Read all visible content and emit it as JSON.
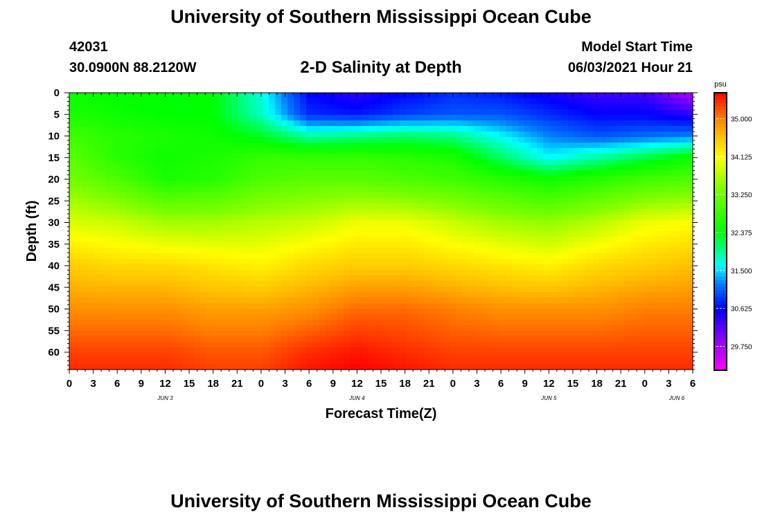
{
  "header": {
    "title": "University of Southern Mississippi Ocean Cube",
    "station_id": "42031",
    "station_position": "30.0900N  88.2120W",
    "plot_title": "2-D Salinity at Depth",
    "model_start_label": "Model Start Time",
    "model_start_value": "06/03/2021 Hour 21"
  },
  "footer": {
    "title": "University of Southern Mississippi Ocean Cube"
  },
  "chart_data": {
    "type": "heatmap",
    "title": "2-D Salinity at Depth",
    "xlabel": "Forecast Time(Z)",
    "ylabel": "Depth (ft)",
    "x_range_hours": [
      0,
      78
    ],
    "y_range": [
      0,
      64
    ],
    "y_inverted": true,
    "x_ticks": [
      {
        "h": 0,
        "label": "0"
      },
      {
        "h": 3,
        "label": "3"
      },
      {
        "h": 6,
        "label": "6"
      },
      {
        "h": 9,
        "label": "9"
      },
      {
        "h": 12,
        "label": "12"
      },
      {
        "h": 15,
        "label": "15"
      },
      {
        "h": 18,
        "label": "18"
      },
      {
        "h": 21,
        "label": "21"
      },
      {
        "h": 24,
        "label": "0"
      },
      {
        "h": 27,
        "label": "3"
      },
      {
        "h": 30,
        "label": "6"
      },
      {
        "h": 33,
        "label": "9"
      },
      {
        "h": 36,
        "label": "12"
      },
      {
        "h": 39,
        "label": "15"
      },
      {
        "h": 42,
        "label": "18"
      },
      {
        "h": 45,
        "label": "21"
      },
      {
        "h": 48,
        "label": "0"
      },
      {
        "h": 51,
        "label": "3"
      },
      {
        "h": 54,
        "label": "6"
      },
      {
        "h": 57,
        "label": "9"
      },
      {
        "h": 60,
        "label": "12"
      },
      {
        "h": 63,
        "label": "15"
      },
      {
        "h": 66,
        "label": "18"
      },
      {
        "h": 69,
        "label": "21"
      },
      {
        "h": 72,
        "label": "0"
      },
      {
        "h": 75,
        "label": "3"
      },
      {
        "h": 78,
        "label": "6"
      }
    ],
    "date_labels": [
      {
        "h": 12,
        "label": "JUN 3"
      },
      {
        "h": 36,
        "label": "JUN 4"
      },
      {
        "h": 60,
        "label": "JUN 5"
      },
      {
        "h": 76,
        "label": "JUN 6"
      }
    ],
    "y_ticks": [
      0,
      5,
      10,
      15,
      20,
      25,
      30,
      35,
      40,
      45,
      50,
      55,
      60
    ],
    "colorbar": {
      "unit": "psu",
      "range": [
        29.2,
        35.6
      ],
      "ticks": [
        "35.000",
        "34.125",
        "33.250",
        "32.375",
        "31.500",
        "30.625",
        "29.750"
      ],
      "tick_values": [
        35.0,
        34.125,
        33.25,
        32.375,
        31.5,
        30.625,
        29.75
      ],
      "colors": [
        {
          "v": 29.2,
          "c": "#ff00ff"
        },
        {
          "v": 30.0,
          "c": "#7f00ff"
        },
        {
          "v": 30.6,
          "c": "#0000ff"
        },
        {
          "v": 31.2,
          "c": "#0080ff"
        },
        {
          "v": 31.6,
          "c": "#00ffff"
        },
        {
          "v": 32.4,
          "c": "#00ff00"
        },
        {
          "v": 33.4,
          "c": "#80ff00"
        },
        {
          "v": 34.1,
          "c": "#ffff00"
        },
        {
          "v": 34.6,
          "c": "#ffc000"
        },
        {
          "v": 35.0,
          "c": "#ff8000"
        },
        {
          "v": 35.6,
          "c": "#ff0000"
        }
      ]
    },
    "grid_hours": [
      0,
      6,
      12,
      18,
      24,
      30,
      36,
      42,
      48,
      54,
      60,
      66,
      72,
      78
    ],
    "grid_depths": [
      0,
      5,
      10,
      15,
      20,
      30,
      40,
      50,
      60,
      64
    ],
    "values": [
      [
        32.5,
        32.4,
        32.4,
        32.4,
        31.7,
        30.6,
        30.4,
        30.6,
        30.8,
        30.7,
        30.5,
        30.3,
        30.3,
        29.7
      ],
      [
        32.6,
        32.5,
        32.4,
        32.4,
        31.8,
        30.8,
        30.7,
        30.9,
        31.0,
        31.0,
        30.8,
        30.6,
        30.6,
        30.4
      ],
      [
        32.9,
        32.7,
        32.6,
        32.5,
        32.3,
        31.9,
        32.0,
        32.1,
        32.0,
        31.6,
        31.2,
        31.0,
        31.1,
        31.2
      ],
      [
        33.1,
        32.7,
        32.5,
        32.6,
        32.8,
        32.8,
        32.8,
        32.7,
        32.6,
        32.1,
        31.6,
        31.9,
        32.2,
        32.5
      ],
      [
        33.3,
        33.0,
        32.6,
        32.7,
        33.0,
        33.1,
        33.1,
        33.0,
        32.9,
        32.7,
        32.5,
        32.7,
        32.9,
        33.0
      ],
      [
        33.9,
        33.8,
        33.6,
        33.6,
        33.7,
        33.8,
        34.0,
        34.0,
        33.8,
        33.6,
        33.5,
        33.7,
        34.0,
        34.1
      ],
      [
        34.5,
        34.4,
        34.4,
        34.3,
        34.2,
        34.4,
        34.5,
        34.5,
        34.4,
        34.3,
        34.2,
        34.4,
        34.5,
        34.6
      ],
      [
        34.9,
        34.9,
        34.9,
        34.8,
        34.8,
        34.9,
        35.1,
        35.1,
        35.0,
        34.9,
        34.9,
        34.9,
        35.0,
        35.0
      ],
      [
        35.3,
        35.3,
        35.3,
        35.2,
        35.2,
        35.4,
        35.5,
        35.4,
        35.3,
        35.3,
        35.3,
        35.3,
        35.3,
        35.3
      ],
      [
        35.4,
        35.4,
        35.4,
        35.3,
        35.3,
        35.5,
        35.6,
        35.5,
        35.4,
        35.4,
        35.4,
        35.4,
        35.4,
        35.4
      ]
    ]
  }
}
